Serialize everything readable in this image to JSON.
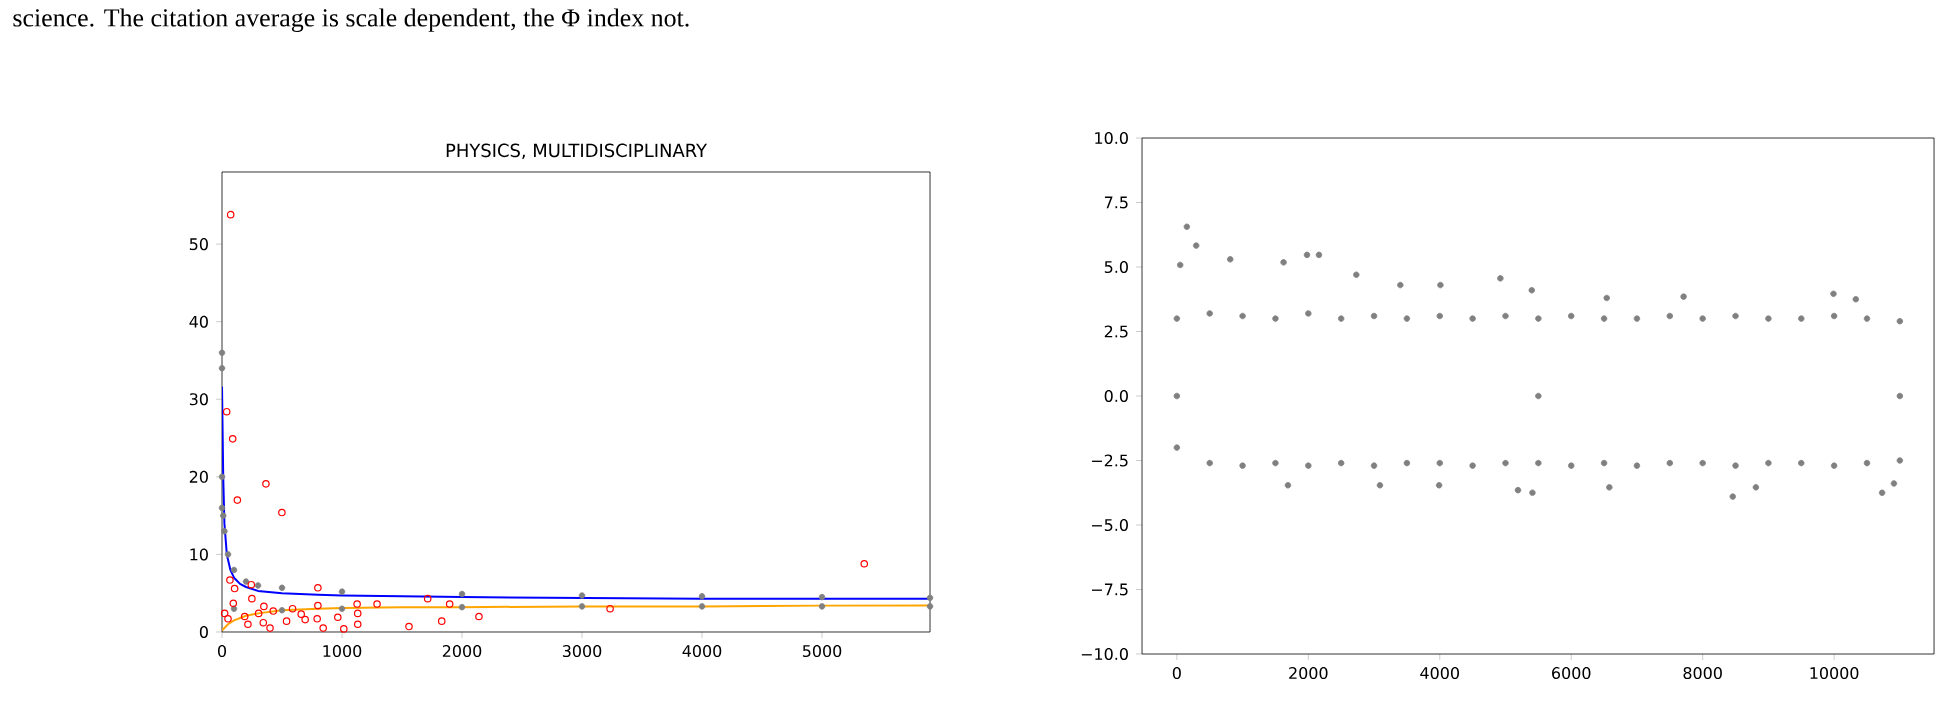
{
  "chart_data": [
    {
      "type": "scatter",
      "title": "PHYSICS, MULTIDISCIPLINARY",
      "annotations": [
        "science. The citation average is scale dependent, the Φ index not."
      ],
      "xlim": [
        0,
        5900
      ],
      "ylim": [
        0,
        59.3
      ],
      "xticks": [
        0,
        1000,
        2000,
        3000,
        4000,
        5000
      ],
      "yticks": [
        0,
        10,
        20,
        30,
        40,
        50
      ],
      "series": [
        {
          "marker": "circle",
          "color": "#808080",
          "x": [
            0,
            0,
            0,
            0,
            10,
            20,
            50,
            100,
            200,
            300,
            500,
            1000,
            2000,
            3000,
            4000,
            5000,
            5900,
            100,
            500,
            1000,
            2000,
            3000,
            4000,
            5000,
            5900
          ],
          "values": [
            36,
            34,
            20,
            16,
            15,
            13,
            10,
            8,
            6.5,
            6,
            5.7,
            5.2,
            4.9,
            4.7,
            4.6,
            4.5,
            4.4,
            3,
            2.8,
            3,
            3.2,
            3.3,
            3.3,
            3.3,
            3.3
          ]
        },
        {
          "type": "line",
          "marker": "none",
          "color": "#0000ff",
          "x": [
            0,
            10,
            20,
            40,
            70,
            100,
            150,
            200,
            300,
            500,
            800,
            1000,
            2000,
            3000,
            4000,
            5000,
            5900
          ],
          "values": [
            31.6,
            20,
            14,
            10,
            8,
            7,
            6.2,
            5.8,
            5.3,
            5.0,
            4.8,
            4.7,
            4.5,
            4.4,
            4.3,
            4.3,
            4.3
          ]
        },
        {
          "type": "line",
          "marker": "none",
          "color": "#ffa500",
          "x": [
            0,
            50,
            100,
            200,
            300,
            500,
            800,
            1000,
            1500,
            2000,
            3000,
            4000,
            5000,
            5900
          ],
          "values": [
            0.2,
            1.0,
            1.5,
            2.1,
            2.4,
            2.8,
            3.0,
            3.1,
            3.2,
            3.2,
            3.3,
            3.3,
            3.4,
            3.4
          ]
        },
        {
          "marker": "circle",
          "color": "#ff0000",
          "x": [
            72,
            39,
            89,
            366,
            128,
            499,
            5352,
            799,
            66,
            244,
            105,
            1714,
            1126,
            1292,
            1897,
            799,
            3234,
            588,
            249,
            349,
            94,
            22,
            427,
            660,
            1131,
            965,
            793,
            538,
            693,
            2141,
            1831,
            1131,
            1558,
            843,
            1015,
            216,
            344,
            400,
            50,
            189,
            305
          ],
          "values": [
            53.8,
            28.4,
            24.9,
            19.1,
            17.0,
            15.4,
            8.8,
            5.7,
            6.7,
            6.1,
            5.6,
            4.3,
            3.6,
            3.6,
            3.6,
            3.4,
            3.0,
            3.0,
            4.3,
            3.3,
            3.7,
            2.4,
            2.7,
            2.3,
            2.4,
            1.9,
            1.7,
            1.4,
            1.6,
            2.0,
            1.4,
            1.0,
            0.7,
            0.5,
            0.4,
            1.0,
            1.2,
            0.5,
            1.7,
            2.0,
            2.4
          ]
        }
      ]
    },
    {
      "type": "scatter",
      "xlim": [
        -530,
        11520
      ],
      "ylim": [
        -10,
        10
      ],
      "xticks": [
        0,
        2000,
        4000,
        6000,
        8000,
        10000
      ],
      "yticks": [
        {
          "value": -10,
          "label": "−10.0"
        },
        {
          "value": -7.5,
          "label": "−7.5"
        },
        {
          "value": -5,
          "label": "−5.0"
        },
        {
          "value": -2.5,
          "label": "−2.5"
        },
        {
          "value": 0,
          "label": "0.0"
        },
        {
          "value": 2.5,
          "label": "2.5"
        },
        {
          "value": 5,
          "label": "5.0"
        },
        {
          "value": 7.5,
          "label": "7.5"
        },
        {
          "value": 10,
          "label": "10.0"
        }
      ],
      "series": [
        {
          "marker": "circle",
          "color": "#808080",
          "x": [
            152,
            294,
            51,
            812,
            1980,
            2162,
            1624,
            2730,
            4922,
            3400,
            4010,
            5400,
            7710,
            9990,
            10330,
            6540,
            8458,
            10730,
            5410,
            5190,
            1690,
            3090,
            8810,
            6580,
            10910,
            3990,
            0,
            500,
            1000,
            1500,
            2000,
            2500,
            3000,
            3500,
            4000,
            4500,
            5000,
            5500,
            6000,
            6500,
            7000,
            7500,
            8000,
            8500,
            9000,
            9500,
            10000,
            10500,
            11000,
            0,
            500,
            1000,
            1500,
            2000,
            2500,
            3000,
            3500,
            4000,
            4500,
            5000,
            5500,
            6000,
            6500,
            7000,
            7500,
            8000,
            8500,
            9000,
            9500,
            10000,
            10500,
            11000,
            0,
            5500,
            11000
          ],
          "values": [
            6.56,
            5.83,
            5.08,
            5.3,
            5.47,
            5.47,
            5.18,
            4.7,
            4.56,
            4.3,
            4.3,
            4.1,
            3.85,
            3.96,
            3.75,
            3.8,
            -3.9,
            -3.75,
            -3.75,
            -3.65,
            -3.46,
            -3.46,
            -3.54,
            -3.54,
            -3.39,
            -3.46,
            3.0,
            3.2,
            3.1,
            3.0,
            3.2,
            3.0,
            3.1,
            3.0,
            3.1,
            3.0,
            3.1,
            3.0,
            3.1,
            3.0,
            3.0,
            3.1,
            3.0,
            3.1,
            3.0,
            3.0,
            3.1,
            3.0,
            2.9,
            -2.0,
            -2.6,
            -2.7,
            -2.6,
            -2.7,
            -2.6,
            -2.7,
            -2.6,
            -2.6,
            -2.7,
            -2.6,
            -2.6,
            -2.7,
            -2.6,
            -2.7,
            -2.6,
            -2.6,
            -2.7,
            -2.6,
            -2.6,
            -2.7,
            -2.6,
            -2.5,
            0,
            0,
            0
          ]
        }
      ]
    }
  ]
}
